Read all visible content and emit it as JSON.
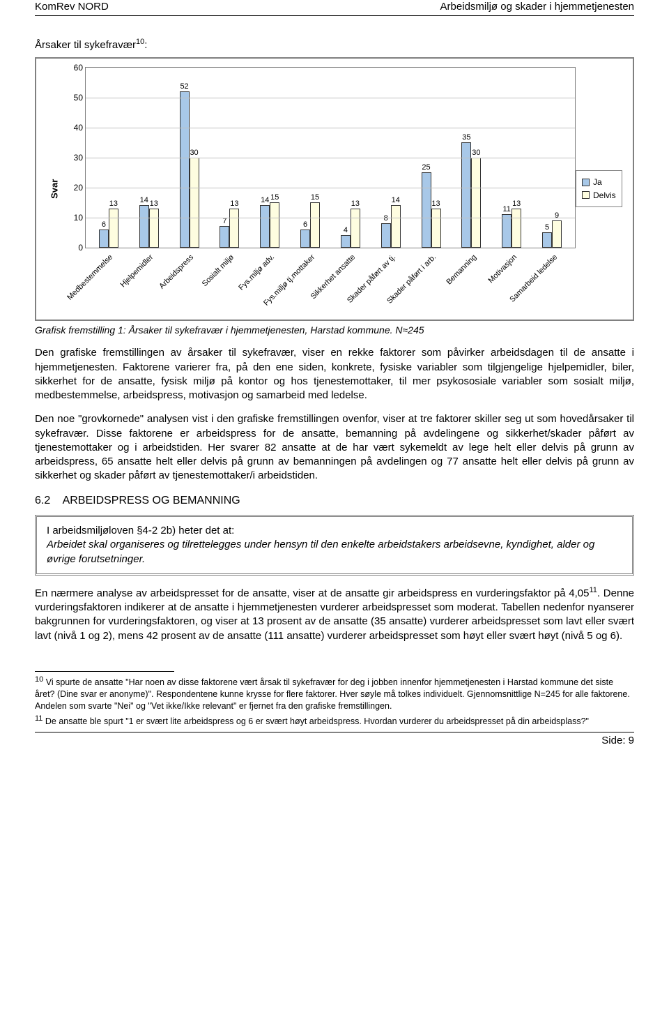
{
  "header": {
    "left": "KomRev NORD",
    "right": "Arbeidsmiljø og skader i hjemmetjenesten"
  },
  "title": {
    "pre": "Årsaker til sykefravær",
    "sup": "10",
    "post": ":"
  },
  "chart": {
    "ylabel": "Svar",
    "ymax": 60,
    "ystep": 10,
    "colors": {
      "ja": "#a8c8e8",
      "delvis": "#fefde0",
      "border": "#333333",
      "grid": "#c0c0c0"
    },
    "legend": [
      {
        "label": "Ja",
        "key": "ja"
      },
      {
        "label": "Delvis",
        "key": "delvis"
      }
    ],
    "cats": [
      {
        "label": "Medbestemmelse",
        "ja": 6,
        "delvis": 13
      },
      {
        "label": "Hjelpemidler",
        "ja": 14,
        "delvis": 13
      },
      {
        "label": "Arbeidspress",
        "ja": 52,
        "delvis": 30
      },
      {
        "label": "Sosialt miljø",
        "ja": 7,
        "delvis": 13
      },
      {
        "label": "Fys.miljø adv.",
        "ja": 14,
        "delvis": 15
      },
      {
        "label": "Fys.miljø tj.mottaker",
        "ja": 6,
        "delvis": 15
      },
      {
        "label": "Sikkerhet ansatte",
        "ja": 4,
        "delvis": 13
      },
      {
        "label": "Skader påført av tj.",
        "ja": 8,
        "delvis": 14
      },
      {
        "label": "Skader påført i arb.",
        "ja": 25,
        "delvis": 13
      },
      {
        "label": "Bemanning",
        "ja": 35,
        "delvis": 30
      },
      {
        "label": "Motivasjon",
        "ja": 11,
        "delvis": 13
      },
      {
        "label": "Samarbeid ledelse",
        "ja": 5,
        "delvis": 9
      }
    ]
  },
  "caption": "Grafisk fremstilling 1: Årsaker til sykefravær i hjemmetjenesten, Harstad kommune. N≈245",
  "p1": "Den grafiske fremstillingen av årsaker til sykefravær, viser en rekke faktorer som påvirker arbeidsdagen til de ansatte i hjemmetjenesten. Faktorene varierer fra, på den ene siden, konkrete, fysiske variabler som tilgjengelige hjelpemidler, biler, sikkerhet for de ansatte, fysisk miljø på kontor og hos tjenestemottaker, til mer psykososiale variabler som sosialt miljø, medbestemmelse, arbeidspress, motivasjon og samarbeid med ledelse.",
  "p2": "Den noe \"grovkornede\" analysen vist i den grafiske fremstillingen ovenfor, viser at tre faktorer skiller seg ut som hovedårsaker til sykefravær. Disse faktorene er arbeidspress for de ansatte, bemanning på avdelingene og sikkerhet/skader påført av tjenestemottaker og i arbeidstiden. Her svarer 82 ansatte at de har vært sykemeldt av lege helt eller delvis på grunn av arbeidspress, 65 ansatte helt eller delvis på grunn av bemanningen på avdelingen og 77 ansatte helt eller delvis på grunn av sikkerhet og skader påført av tjenestemottaker/i arbeidstiden.",
  "section": {
    "num": "6.2",
    "title": "ARBEIDSPRESS OG BEMANNING"
  },
  "quote": {
    "lead": "I arbeidsmiljøloven §4-2 2b) heter det at:",
    "body": "Arbeidet skal organiseres og tilrettelegges under hensyn til den enkelte arbeidstakers arbeidsevne, kyndighet, alder og øvrige forutsetninger."
  },
  "p3a": "En nærmere analyse av arbeidspresset for de ansatte, viser at de ansatte gir arbeidspress en vurderingsfaktor på 4,05",
  "p3sup": "11",
  "p3b": ". Denne vurderingsfaktoren indikerer at de ansatte i hjemmetjenesten vurderer arbeidspresset som moderat. Tabellen nedenfor nyanserer bakgrunnen for vurderingsfaktoren, og viser at 13 prosent av de ansatte (35 ansatte) vurderer arbeidspresset som lavt eller svært lavt (nivå 1 og 2), mens 42 prosent av de ansatte (111 ansatte) vurderer arbeidspresset som høyt eller svært høyt (nivå 5 og 6).",
  "fn10": {
    "sup": "10",
    "text": " Vi spurte de ansatte \"Har noen av disse faktorene vært årsak til sykefravær for deg i jobben innenfor hjemmetjenesten i Harstad kommune det siste året? (Dine svar er anonyme)\". Respondentene kunne krysse for flere faktorer. Hver søyle må tolkes individuelt. Gjennomsnittlige N=245 for alle faktorene. Andelen som svarte \"Nei\" og \"Vet ikke/Ikke relevant\" er fjernet fra den grafiske fremstillingen."
  },
  "fn11": {
    "sup": "11",
    "text": " De ansatte ble spurt \"1 er svært lite arbeidspress og 6 er svært høyt arbeidspress. Hvordan vurderer du arbeidspresset på din arbeidsplass?\""
  },
  "footer": "Side: 9"
}
